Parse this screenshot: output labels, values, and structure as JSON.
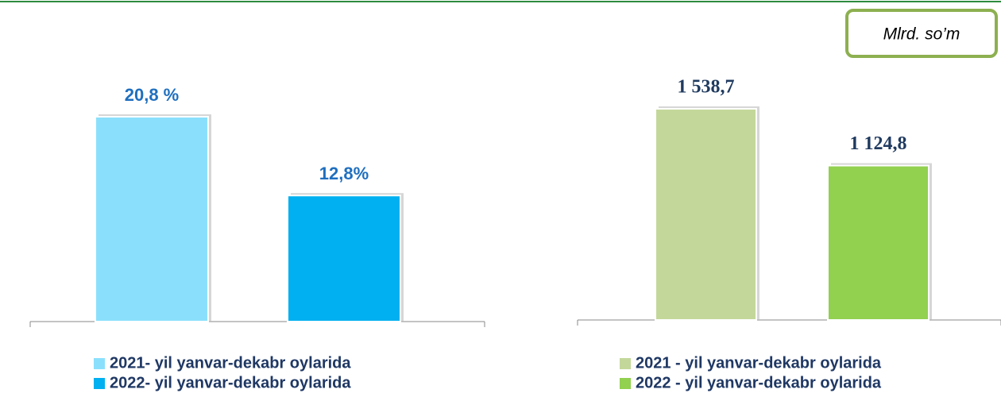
{
  "chart_data": [
    {
      "type": "bar",
      "series": [
        {
          "name": "2021- yil yanvar-dekabr oylarida",
          "color": "#8ae0fc",
          "values": [
            20.8
          ],
          "value_labels": [
            "20,8 %"
          ]
        },
        {
          "name": "2022- yil yanvar-dekabr oylarida",
          "color": "#00b0f0",
          "values": [
            12.8
          ],
          "value_labels": [
            "12,8%"
          ]
        }
      ]
    },
    {
      "type": "bar",
      "annotation": "Mlrd. so’m",
      "series": [
        {
          "name": "2021 - yil yanvar-dekabr oylarida",
          "color": "#c4d79b",
          "values": [
            1538.7
          ],
          "value_labels": [
            "1 538,7"
          ]
        },
        {
          "name": "2022 - yil yanvar-dekabr oylarida",
          "color": "#92d050",
          "values": [
            1124.8
          ],
          "value_labels": [
            "1 124,8"
          ]
        }
      ]
    }
  ]
}
